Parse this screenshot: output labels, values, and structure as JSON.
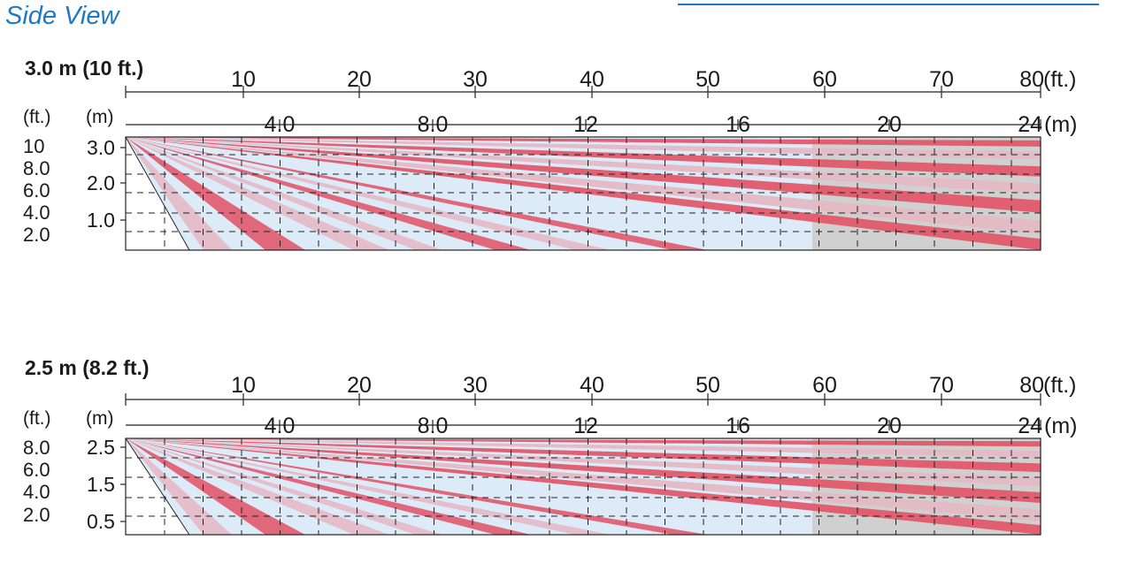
{
  "page": {
    "heading": "Side View",
    "accent_color": "#1f78c2"
  },
  "colors": {
    "zone_light": "#dcebf7",
    "zone_gray": "#d0d0d0",
    "band_red": "#e05a6c",
    "band_pink": "#e4b9c4",
    "grid_line": "#222222"
  },
  "diagrams": [
    {
      "id": "3m",
      "title": "3.0 m (10 ft.)",
      "height_m": 3.0,
      "ft_axis": {
        "ticks": [
          "10",
          "20",
          "30",
          "40",
          "50",
          "60",
          "70",
          "80"
        ],
        "unit": "(ft.)"
      },
      "m_axis": {
        "ticks": [
          "4.0",
          "8.0",
          "12",
          "16",
          "20",
          "24"
        ],
        "unit": "(m)"
      },
      "left_ft": {
        "unit": "(ft.)",
        "labels": [
          "10",
          "8.0",
          "6.0",
          "4.0",
          "2.0"
        ]
      },
      "left_m": {
        "unit": "(m)",
        "labels": [
          "3.0",
          "2.0",
          "1.0"
        ]
      }
    },
    {
      "id": "2_5m",
      "title": "2.5 m (8.2 ft.)",
      "height_m": 2.5,
      "ft_axis": {
        "ticks": [
          "10",
          "20",
          "30",
          "40",
          "50",
          "60",
          "70",
          "80"
        ],
        "unit": "(ft.)"
      },
      "m_axis": {
        "ticks": [
          "4.0",
          "8.0",
          "12",
          "16",
          "20",
          "24"
        ],
        "unit": "(m)"
      },
      "left_ft": {
        "unit": "(ft.)",
        "labels": [
          "8.0",
          "6.0",
          "4.0",
          "2.0"
        ]
      },
      "left_m": {
        "unit": "(m)",
        "labels": [
          "2.5",
          "1.5",
          "0.5"
        ]
      }
    }
  ]
}
